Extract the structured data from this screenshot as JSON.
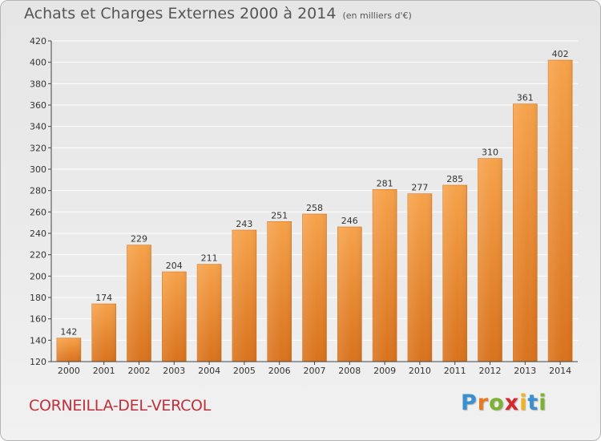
{
  "header": {
    "title": "Achats et Charges Externes 2000 à 2014",
    "subtitle": "(en milliers d'€)"
  },
  "footer": {
    "commune": "CORNEILLA-DEL-VERCOL",
    "logo_letters": [
      "P",
      "r",
      "o",
      "x",
      "i",
      "t",
      "i"
    ],
    "logo_colors": [
      "#3a8fd0",
      "#e87a1e",
      "#7ab32e",
      "#d8262e",
      "#f2b41b",
      "#3a8fd0",
      "#7ab32e"
    ]
  },
  "colors": {
    "bar_light": "#f6a24a",
    "bar_dark": "#d9721c",
    "axis": "#444444",
    "grid": "#ffffff"
  },
  "chart_data": {
    "type": "bar",
    "categories": [
      "2000",
      "2001",
      "2002",
      "2003",
      "2004",
      "2005",
      "2006",
      "2007",
      "2008",
      "2009",
      "2010",
      "2011",
      "2012",
      "2013",
      "2014"
    ],
    "values": [
      142,
      174,
      229,
      204,
      211,
      243,
      251,
      258,
      246,
      281,
      277,
      285,
      310,
      361,
      402
    ],
    "title": "Achats et Charges Externes 2000 à 2014",
    "subtitle": "(en milliers d'€)",
    "xlabel": "",
    "ylabel": "",
    "ylim": [
      120,
      420
    ],
    "yticks": [
      120,
      140,
      160,
      180,
      200,
      220,
      240,
      260,
      280,
      300,
      320,
      340,
      360,
      380,
      400,
      420
    ],
    "grid": true,
    "data_labels": true
  }
}
